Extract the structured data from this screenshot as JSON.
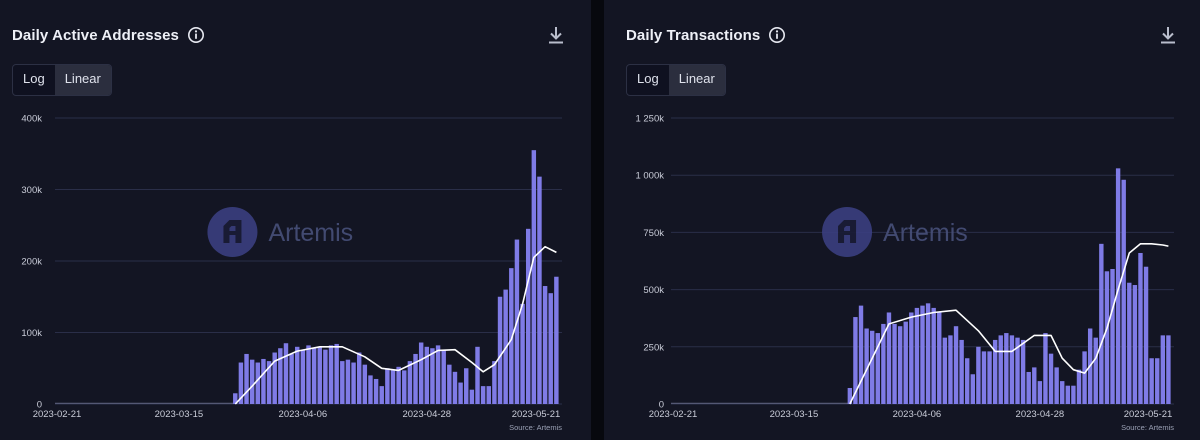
{
  "panels": [
    {
      "title": "Daily Active Addresses",
      "toggle": {
        "options": [
          "Log",
          "Linear"
        ],
        "selected": "Linear"
      },
      "watermark": "Artemis",
      "source": "Source: Artemis",
      "icons": {
        "info": "info-icon",
        "download": "download-icon"
      }
    },
    {
      "title": "Daily Transactions",
      "toggle": {
        "options": [
          "Log",
          "Linear"
        ],
        "selected": "Linear"
      },
      "watermark": "Artemis",
      "source": "Source: Artemis",
      "icons": {
        "info": "info-icon",
        "download": "download-icon"
      }
    }
  ],
  "colors": {
    "bar": "#7f7be6",
    "line": "#ffffff",
    "grid": "#2a2e48",
    "background": "#131523"
  },
  "chart_data": [
    {
      "type": "bar",
      "title": "Daily Active Addresses",
      "x_start": "2023-02-21",
      "x_end": "2023-05-22",
      "x_tick_labels": [
        "2023-02-21",
        "2023-03-15",
        "2023-04-06",
        "2023-04-28",
        "2023-05-21"
      ],
      "y_tick_labels": [
        "0",
        "100k",
        "200k",
        "300k",
        "400k"
      ],
      "ylim": [
        0,
        400000
      ],
      "grid": true,
      "series": [
        {
          "kind": "bar",
          "x": [
            "2023-03-25",
            "2023-03-26",
            "2023-03-27",
            "2023-03-28",
            "2023-03-29",
            "2023-03-30",
            "2023-03-31",
            "2023-04-01",
            "2023-04-02",
            "2023-04-03",
            "2023-04-04",
            "2023-04-05",
            "2023-04-06",
            "2023-04-07",
            "2023-04-08",
            "2023-04-09",
            "2023-04-10",
            "2023-04-11",
            "2023-04-12",
            "2023-04-13",
            "2023-04-14",
            "2023-04-15",
            "2023-04-16",
            "2023-04-17",
            "2023-04-18",
            "2023-04-19",
            "2023-04-20",
            "2023-04-21",
            "2023-04-22",
            "2023-04-23",
            "2023-04-24",
            "2023-04-25",
            "2023-04-26",
            "2023-04-27",
            "2023-04-28",
            "2023-04-29",
            "2023-04-30",
            "2023-05-01",
            "2023-05-02",
            "2023-05-03",
            "2023-05-04",
            "2023-05-05",
            "2023-05-06",
            "2023-05-07",
            "2023-05-08",
            "2023-05-09",
            "2023-05-10",
            "2023-05-11",
            "2023-05-12",
            "2023-05-13",
            "2023-05-14",
            "2023-05-15",
            "2023-05-16",
            "2023-05-17",
            "2023-05-18",
            "2023-05-19",
            "2023-05-20",
            "2023-05-21"
          ],
          "values": [
            15000,
            58000,
            70000,
            62000,
            58000,
            63000,
            60000,
            72000,
            78000,
            85000,
            70000,
            80000,
            75000,
            82000,
            78000,
            80000,
            76000,
            82000,
            84000,
            60000,
            62000,
            58000,
            72000,
            55000,
            40000,
            35000,
            25000,
            50000,
            48000,
            52000,
            47000,
            60000,
            70000,
            86000,
            80000,
            78000,
            82000,
            75000,
            55000,
            45000,
            30000,
            50000,
            20000,
            80000,
            25000,
            25000,
            60000,
            150000,
            160000,
            190000,
            230000,
            140000,
            245000,
            355000,
            318000,
            165000,
            155000,
            178000
          ]
        },
        {
          "kind": "line",
          "name": "",
          "x": [
            "2023-03-25",
            "2023-03-28",
            "2023-04-01",
            "2023-04-05",
            "2023-04-09",
            "2023-04-13",
            "2023-04-17",
            "2023-04-20",
            "2023-04-23",
            "2023-04-27",
            "2023-04-30",
            "2023-05-03",
            "2023-05-06",
            "2023-05-08",
            "2023-05-10",
            "2023-05-13",
            "2023-05-15",
            "2023-05-17",
            "2023-05-19",
            "2023-05-21"
          ],
          "values": [
            0,
            25000,
            60000,
            74000,
            80000,
            80000,
            66000,
            50000,
            47000,
            62000,
            75000,
            76000,
            58000,
            45000,
            55000,
            90000,
            140000,
            205000,
            220000,
            212000
          ]
        }
      ]
    },
    {
      "type": "bar",
      "title": "Daily Transactions",
      "x_start": "2023-02-21",
      "x_end": "2023-05-22",
      "x_tick_labels": [
        "2023-02-21",
        "2023-03-15",
        "2023-04-06",
        "2023-04-28",
        "2023-05-21"
      ],
      "y_tick_labels": [
        "0",
        "250k",
        "500k",
        "750k",
        "1 000k",
        "1 250k"
      ],
      "ylim": [
        0,
        1250000
      ],
      "grid": true,
      "series": [
        {
          "kind": "bar",
          "x": [
            "2023-03-25",
            "2023-03-26",
            "2023-03-27",
            "2023-03-28",
            "2023-03-29",
            "2023-03-30",
            "2023-03-31",
            "2023-04-01",
            "2023-04-02",
            "2023-04-03",
            "2023-04-04",
            "2023-04-05",
            "2023-04-06",
            "2023-04-07",
            "2023-04-08",
            "2023-04-09",
            "2023-04-10",
            "2023-04-11",
            "2023-04-12",
            "2023-04-13",
            "2023-04-14",
            "2023-04-15",
            "2023-04-16",
            "2023-04-17",
            "2023-04-18",
            "2023-04-19",
            "2023-04-20",
            "2023-04-21",
            "2023-04-22",
            "2023-04-23",
            "2023-04-24",
            "2023-04-25",
            "2023-04-26",
            "2023-04-27",
            "2023-04-28",
            "2023-04-29",
            "2023-04-30",
            "2023-05-01",
            "2023-05-02",
            "2023-05-03",
            "2023-05-04",
            "2023-05-05",
            "2023-05-06",
            "2023-05-07",
            "2023-05-08",
            "2023-05-09",
            "2023-05-10",
            "2023-05-11",
            "2023-05-12",
            "2023-05-13",
            "2023-05-14",
            "2023-05-15",
            "2023-05-16",
            "2023-05-17",
            "2023-05-18",
            "2023-05-19",
            "2023-05-20",
            "2023-05-21"
          ],
          "values": [
            70000,
            380000,
            430000,
            330000,
            320000,
            310000,
            350000,
            400000,
            350000,
            340000,
            360000,
            400000,
            420000,
            430000,
            440000,
            420000,
            400000,
            290000,
            300000,
            340000,
            280000,
            200000,
            130000,
            250000,
            230000,
            230000,
            280000,
            300000,
            310000,
            300000,
            290000,
            280000,
            140000,
            160000,
            100000,
            310000,
            220000,
            160000,
            100000,
            80000,
            80000,
            150000,
            230000,
            330000,
            290000,
            700000,
            580000,
            590000,
            1030000,
            980000,
            530000,
            520000,
            660000,
            600000,
            200000,
            200000,
            300000,
            300000
          ]
        },
        {
          "kind": "line",
          "name": "",
          "x": [
            "2023-03-25",
            "2023-03-28",
            "2023-04-01",
            "2023-04-05",
            "2023-04-09",
            "2023-04-13",
            "2023-04-17",
            "2023-04-20",
            "2023-04-23",
            "2023-04-27",
            "2023-04-30",
            "2023-05-02",
            "2023-05-04",
            "2023-05-06",
            "2023-05-08",
            "2023-05-10",
            "2023-05-12",
            "2023-05-14",
            "2023-05-16",
            "2023-05-18",
            "2023-05-20",
            "2023-05-21"
          ],
          "values": [
            0,
            150000,
            350000,
            380000,
            400000,
            410000,
            320000,
            230000,
            230000,
            300000,
            300000,
            200000,
            150000,
            135000,
            200000,
            330000,
            500000,
            660000,
            700000,
            700000,
            695000,
            690000
          ]
        }
      ]
    }
  ]
}
